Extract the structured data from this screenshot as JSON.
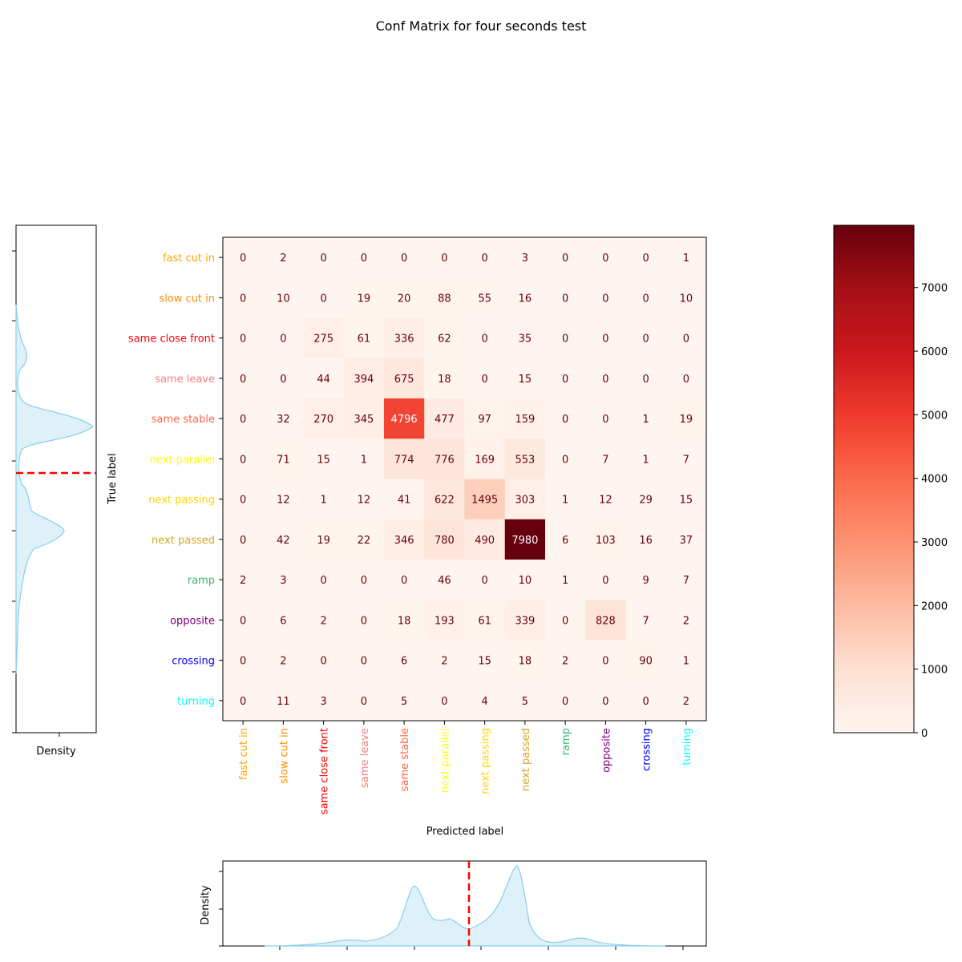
{
  "chart_data": {
    "type": "heatmap",
    "title": "Conf Matrix for four seconds test",
    "xlabel": "Predicted label",
    "ylabel": "True label",
    "labels": [
      "fast cut in",
      "slow cut in",
      "same close front",
      "same leave",
      "same stable",
      "next parallel",
      "next passing",
      "next passed",
      "ramp",
      "opposite",
      "crossing",
      "turning"
    ],
    "label_colors": [
      "#FFA500",
      "#FF8C00",
      "#FF0000",
      "#F08080",
      "#FF6347",
      "#FFFF00",
      "#FFD700",
      "#DAA520",
      "#3CB371",
      "#800080",
      "#0000FF",
      "#00FFFF"
    ],
    "matrix": [
      [
        0,
        2,
        0,
        0,
        0,
        0,
        0,
        3,
        0,
        0,
        0,
        1
      ],
      [
        0,
        10,
        0,
        19,
        20,
        88,
        55,
        16,
        0,
        0,
        0,
        10
      ],
      [
        0,
        0,
        275,
        61,
        336,
        62,
        0,
        35,
        0,
        0,
        0,
        0
      ],
      [
        0,
        0,
        44,
        394,
        675,
        18,
        0,
        15,
        0,
        0,
        0,
        0
      ],
      [
        0,
        32,
        270,
        345,
        4796,
        477,
        97,
        159,
        0,
        0,
        1,
        19
      ],
      [
        0,
        71,
        15,
        1,
        774,
        776,
        169,
        553,
        0,
        7,
        1,
        7
      ],
      [
        0,
        12,
        1,
        12,
        41,
        622,
        1495,
        303,
        1,
        12,
        29,
        15
      ],
      [
        0,
        42,
        19,
        22,
        346,
        780,
        490,
        7980,
        6,
        103,
        16,
        37
      ],
      [
        2,
        3,
        0,
        0,
        0,
        46,
        0,
        10,
        1,
        0,
        9,
        7
      ],
      [
        0,
        6,
        2,
        0,
        18,
        193,
        61,
        339,
        0,
        828,
        7,
        2
      ],
      [
        0,
        2,
        0,
        0,
        6,
        2,
        15,
        18,
        2,
        0,
        90,
        1
      ],
      [
        0,
        11,
        3,
        0,
        5,
        0,
        4,
        5,
        0,
        0,
        0,
        2
      ]
    ],
    "colormap": "Reds",
    "colorbar": {
      "range": [
        0,
        7980
      ],
      "ticks": [
        0,
        1000,
        2000,
        3000,
        4000,
        5000,
        6000,
        7000
      ]
    },
    "side_density": {
      "label": "Density",
      "reference_line_color": "#FF0000",
      "fill_color": "#87CEEB"
    },
    "bottom_density": {
      "label": "Density",
      "reference_line_color": "#FF0000",
      "fill_color": "#87CEEB"
    }
  }
}
